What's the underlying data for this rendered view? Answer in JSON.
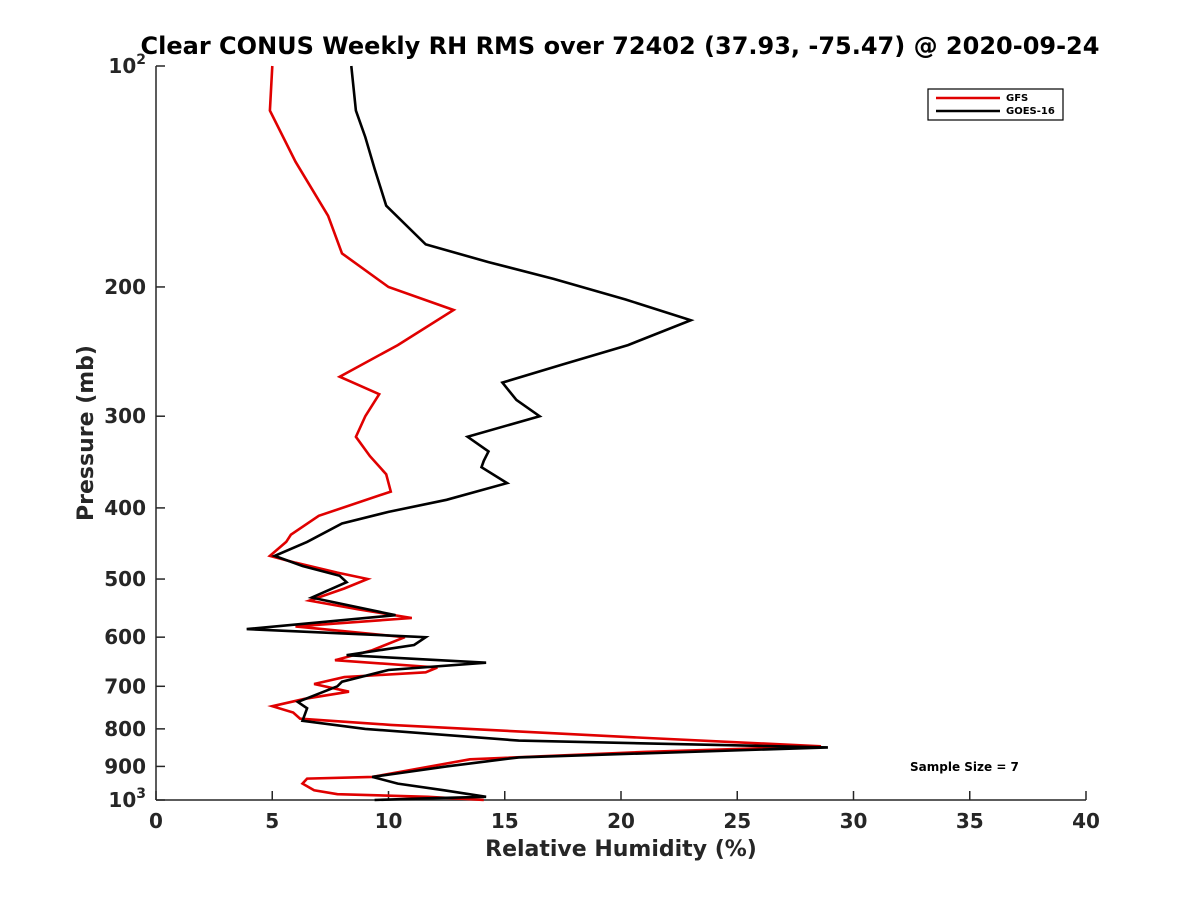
{
  "chart_data": {
    "type": "line",
    "title": "Clear CONUS Weekly RH RMS over 72402 (37.93, -75.47) @ 2020-09-24",
    "xlabel": "Relative Humidity (%)",
    "ylabel": "Pressure (mb)",
    "xlim": [
      0,
      40
    ],
    "ylim": [
      100,
      1000
    ],
    "yscale": "log",
    "y_reversed": true,
    "x_ticks": [
      0,
      5,
      10,
      15,
      20,
      25,
      30,
      35,
      40
    ],
    "y_ticks": [
      {
        "value": 100,
        "label": "10",
        "sup": "2"
      },
      {
        "value": 200,
        "label": "200",
        "sup": ""
      },
      {
        "value": 300,
        "label": "300",
        "sup": ""
      },
      {
        "value": 400,
        "label": "400",
        "sup": ""
      },
      {
        "value": 500,
        "label": "500",
        "sup": ""
      },
      {
        "value": 600,
        "label": "600",
        "sup": ""
      },
      {
        "value": 700,
        "label": "700",
        "sup": ""
      },
      {
        "value": 800,
        "label": "800",
        "sup": ""
      },
      {
        "value": 900,
        "label": "900",
        "sup": ""
      },
      {
        "value": 1000,
        "label": "10",
        "sup": "3"
      }
    ],
    "legend_position": "top-right",
    "grid": false,
    "annotation": "Sample Size = 7",
    "series": [
      {
        "name": "GFS",
        "color": "#e00000",
        "points": [
          [
            5.0,
            100
          ],
          [
            4.9,
            115
          ],
          [
            6.0,
            135
          ],
          [
            7.4,
            160
          ],
          [
            8.0,
            180
          ],
          [
            10.0,
            200
          ],
          [
            12.8,
            215
          ],
          [
            10.4,
            240
          ],
          [
            7.9,
            265
          ],
          [
            9.6,
            280
          ],
          [
            9.0,
            300
          ],
          [
            8.6,
            320
          ],
          [
            9.2,
            340
          ],
          [
            9.9,
            360
          ],
          [
            10.1,
            380
          ],
          [
            7.0,
            410
          ],
          [
            5.8,
            435
          ],
          [
            5.6,
            445
          ],
          [
            4.9,
            465
          ],
          [
            6.0,
            475
          ],
          [
            7.8,
            490
          ],
          [
            9.1,
            500
          ],
          [
            8.1,
            515
          ],
          [
            6.6,
            535
          ],
          [
            8.7,
            550
          ],
          [
            11.0,
            565
          ],
          [
            6.0,
            580
          ],
          [
            10.7,
            600
          ],
          [
            9.3,
            625
          ],
          [
            7.7,
            645
          ],
          [
            12.1,
            660
          ],
          [
            11.6,
            670
          ],
          [
            8.1,
            680
          ],
          [
            6.8,
            695
          ],
          [
            8.3,
            712
          ],
          [
            6.4,
            728
          ],
          [
            5.0,
            745
          ],
          [
            5.9,
            760
          ],
          [
            6.2,
            775
          ],
          [
            10.1,
            790
          ],
          [
            20.0,
            820
          ],
          [
            28.6,
            845
          ],
          [
            21.0,
            860
          ],
          [
            13.5,
            880
          ],
          [
            9.3,
            930
          ],
          [
            6.5,
            935
          ],
          [
            6.3,
            950
          ],
          [
            6.8,
            970
          ],
          [
            7.8,
            982
          ],
          [
            11.7,
            990
          ],
          [
            14.1,
            1000
          ]
        ]
      },
      {
        "name": "GOES-16",
        "color": "#000000",
        "points": [
          [
            8.4,
            100
          ],
          [
            8.6,
            115
          ],
          [
            9.0,
            125
          ],
          [
            9.4,
            138
          ],
          [
            9.9,
            155
          ],
          [
            11.6,
            175
          ],
          [
            14.3,
            185
          ],
          [
            17.1,
            195
          ],
          [
            20.2,
            208
          ],
          [
            23.0,
            222
          ],
          [
            20.3,
            240
          ],
          [
            17.5,
            255
          ],
          [
            14.9,
            270
          ],
          [
            15.5,
            285
          ],
          [
            16.5,
            300
          ],
          [
            13.4,
            320
          ],
          [
            14.3,
            335
          ],
          [
            14.1,
            345
          ],
          [
            14.0,
            352
          ],
          [
            15.1,
            370
          ],
          [
            12.5,
            390
          ],
          [
            10.0,
            405
          ],
          [
            8.0,
            420
          ],
          [
            6.5,
            445
          ],
          [
            5.1,
            465
          ],
          [
            6.3,
            480
          ],
          [
            7.9,
            495
          ],
          [
            8.2,
            505
          ],
          [
            6.7,
            530
          ],
          [
            10.3,
            560
          ],
          [
            3.9,
            585
          ],
          [
            11.6,
            600
          ],
          [
            11.1,
            615
          ],
          [
            8.2,
            635
          ],
          [
            14.2,
            650
          ],
          [
            10.0,
            665
          ],
          [
            8.0,
            690
          ],
          [
            7.8,
            700
          ],
          [
            6.1,
            735
          ],
          [
            6.5,
            750
          ],
          [
            6.4,
            765
          ],
          [
            6.3,
            780
          ],
          [
            9.0,
            800
          ],
          [
            15.6,
            830
          ],
          [
            28.9,
            848
          ],
          [
            15.6,
            875
          ],
          [
            12.5,
            900
          ],
          [
            10.4,
            920
          ],
          [
            9.3,
            930
          ],
          [
            10.4,
            950
          ],
          [
            12.4,
            970
          ],
          [
            14.2,
            990
          ],
          [
            11.5,
            995
          ],
          [
            9.4,
            1000
          ]
        ]
      }
    ]
  }
}
